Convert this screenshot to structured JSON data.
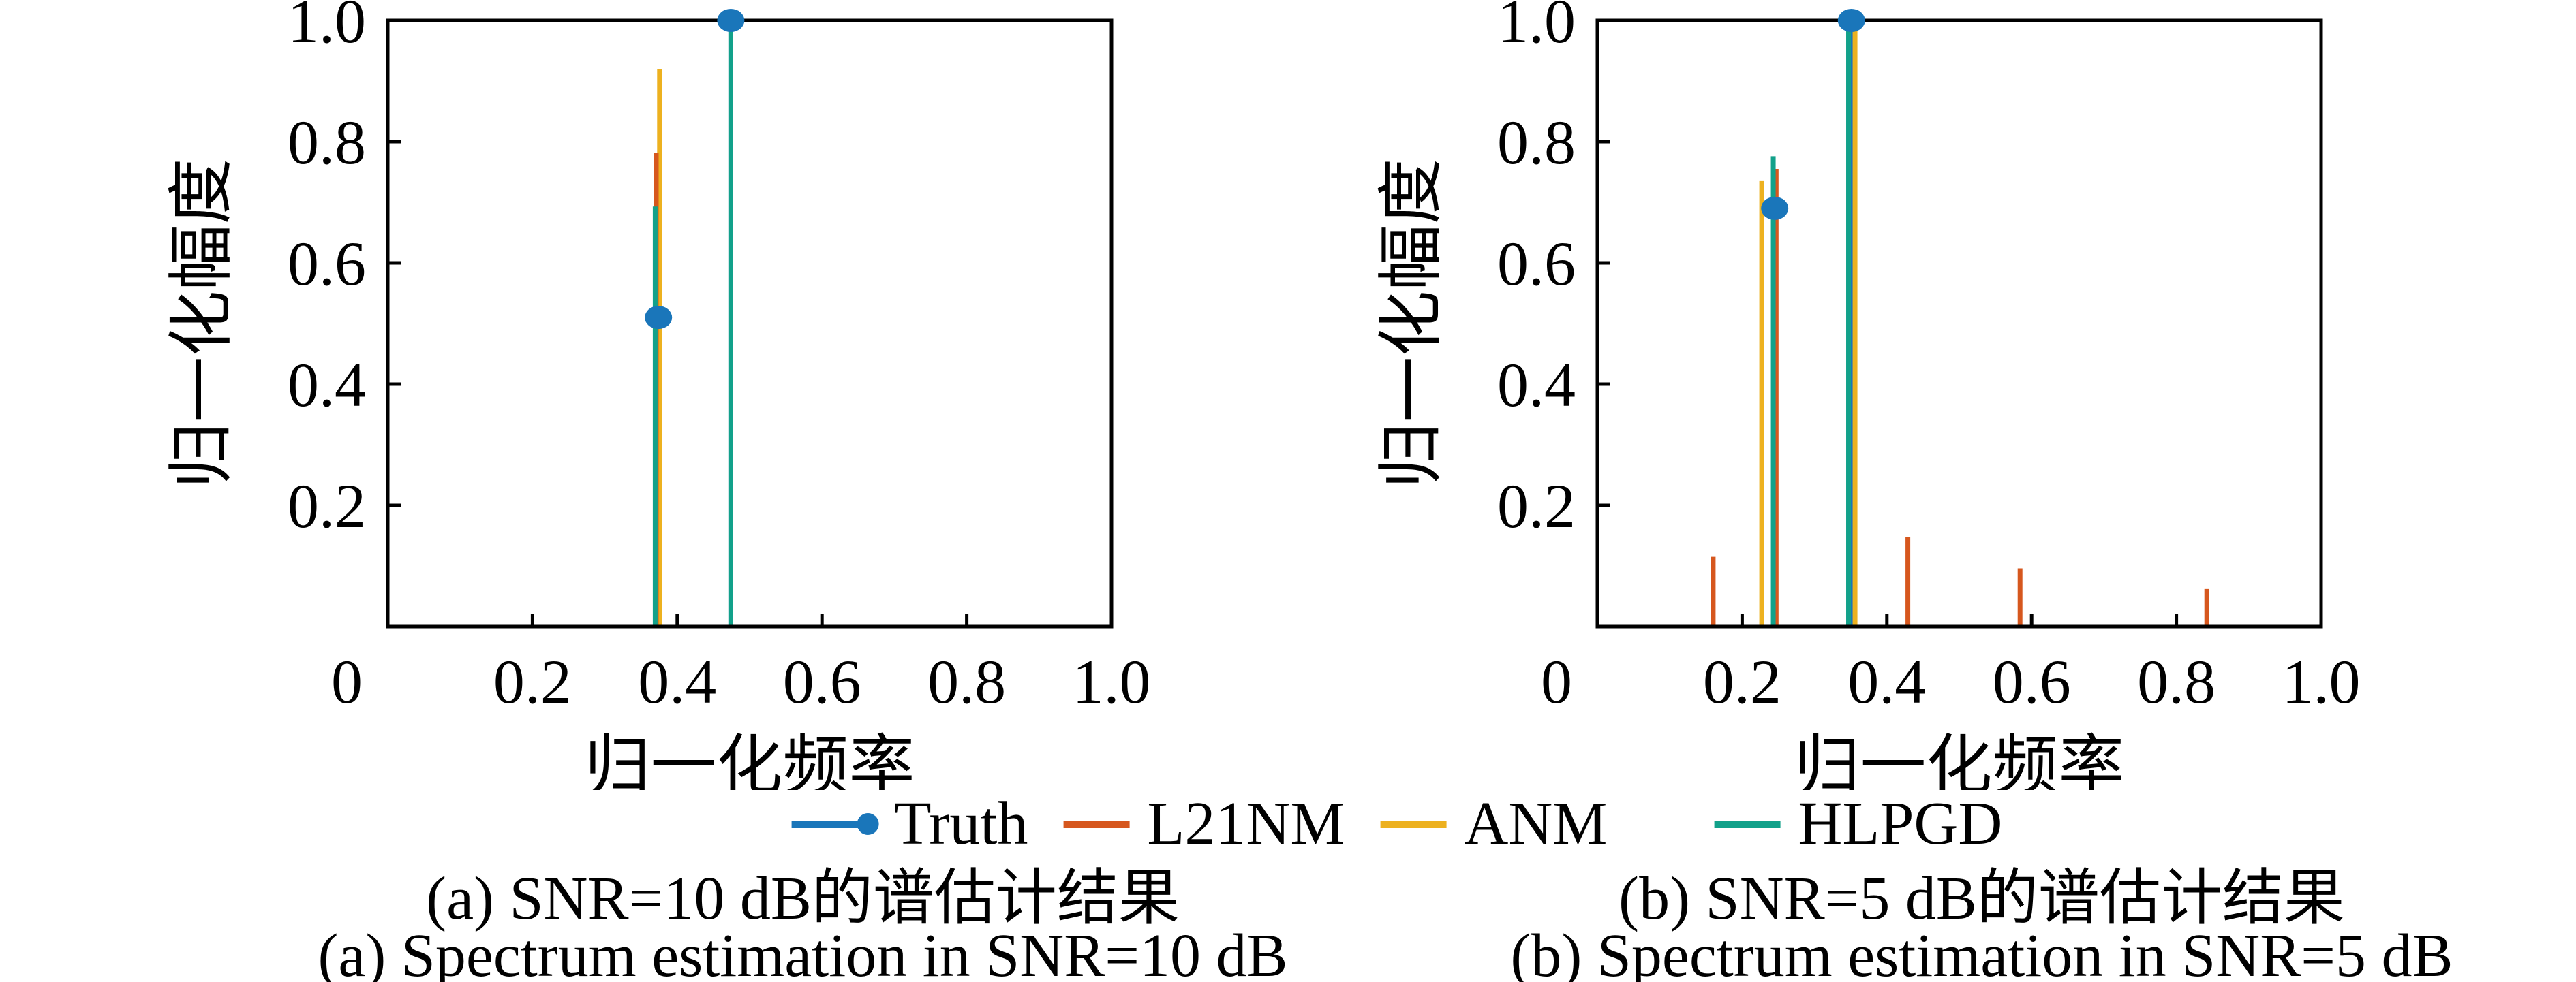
{
  "figure": {
    "background": "#ffffff"
  },
  "palette": {
    "truth": "#1a76ba",
    "l21nm": "#d6571e",
    "anm": "#edb11f",
    "hlpgd": "#12a18a",
    "axis": "#000000",
    "text": "#000000"
  },
  "legend": {
    "items": [
      {
        "label": "Truth",
        "color_key": "truth",
        "swatch": "line-dot"
      },
      {
        "label": "L21NM",
        "color_key": "l21nm",
        "swatch": "line"
      },
      {
        "label": "ANM",
        "color_key": "anm",
        "swatch": "line"
      },
      {
        "label": "HLPGD",
        "color_key": "hlpgd",
        "swatch": "line"
      }
    ]
  },
  "chart_data": [
    {
      "type": "stem",
      "xlabel": "归一化频率",
      "ylabel": "归一化幅度",
      "xlim": [
        0,
        1
      ],
      "ylim": [
        0,
        1
      ],
      "xticks": [
        "0",
        "0.2",
        "0.4",
        "0.6",
        "0.8",
        "1.0"
      ],
      "yticks": [
        "0.2",
        "0.4",
        "0.6",
        "0.8",
        "1.0"
      ],
      "grid": false,
      "caption_zh": "(a) SNR=10 dB的谱估计结果",
      "caption_en": "(a) Spectrum estimation in SNR=10 dB",
      "series": [
        {
          "name": "Truth",
          "color_key": "truth",
          "marker": "circle",
          "points": [
            [
              0.374,
              0.51
            ],
            [
              0.474,
              1.0
            ]
          ]
        },
        {
          "name": "L21NM",
          "color_key": "l21nm",
          "points": [
            [
              0.371,
              0.782
            ]
          ]
        },
        {
          "name": "ANM",
          "color_key": "anm",
          "points": [
            [
              0.3755,
              0.92
            ]
          ]
        },
        {
          "name": "HLPGD",
          "color_key": "hlpgd",
          "points": [
            [
              0.3695,
              0.693
            ],
            [
              0.474,
              1.0
            ]
          ]
        }
      ]
    },
    {
      "type": "stem",
      "xlabel": "归一化频率",
      "ylabel": "归一化幅度",
      "xlim": [
        0,
        1
      ],
      "ylim": [
        0,
        1
      ],
      "xticks": [
        "0",
        "0.2",
        "0.4",
        "0.6",
        "0.8",
        "1.0"
      ],
      "yticks": [
        "0.2",
        "0.4",
        "0.6",
        "0.8",
        "1.0"
      ],
      "grid": false,
      "caption_zh": "(b) SNR=5 dB的谱估计结果",
      "caption_en": "(b) Spectrum estimation in SNR=5 dB",
      "series": [
        {
          "name": "Truth",
          "color_key": "truth",
          "marker": "circle",
          "points": [
            [
              0.245,
              0.69
            ],
            [
              0.351,
              1.0
            ]
          ]
        },
        {
          "name": "L21NM",
          "color_key": "l21nm",
          "points": [
            [
              0.16,
              0.115
            ],
            [
              0.247,
              0.755
            ],
            [
              0.429,
              0.148
            ],
            [
              0.584,
              0.096
            ],
            [
              0.842,
              0.062
            ]
          ]
        },
        {
          "name": "ANM",
          "color_key": "anm",
          "points": [
            [
              0.227,
              0.735
            ],
            [
              0.356,
              1.0
            ]
          ]
        },
        {
          "name": "HLPGD",
          "color_key": "hlpgd",
          "points": [
            [
              0.243,
              0.776
            ],
            [
              0.347,
              1.0
            ]
          ]
        }
      ]
    }
  ]
}
